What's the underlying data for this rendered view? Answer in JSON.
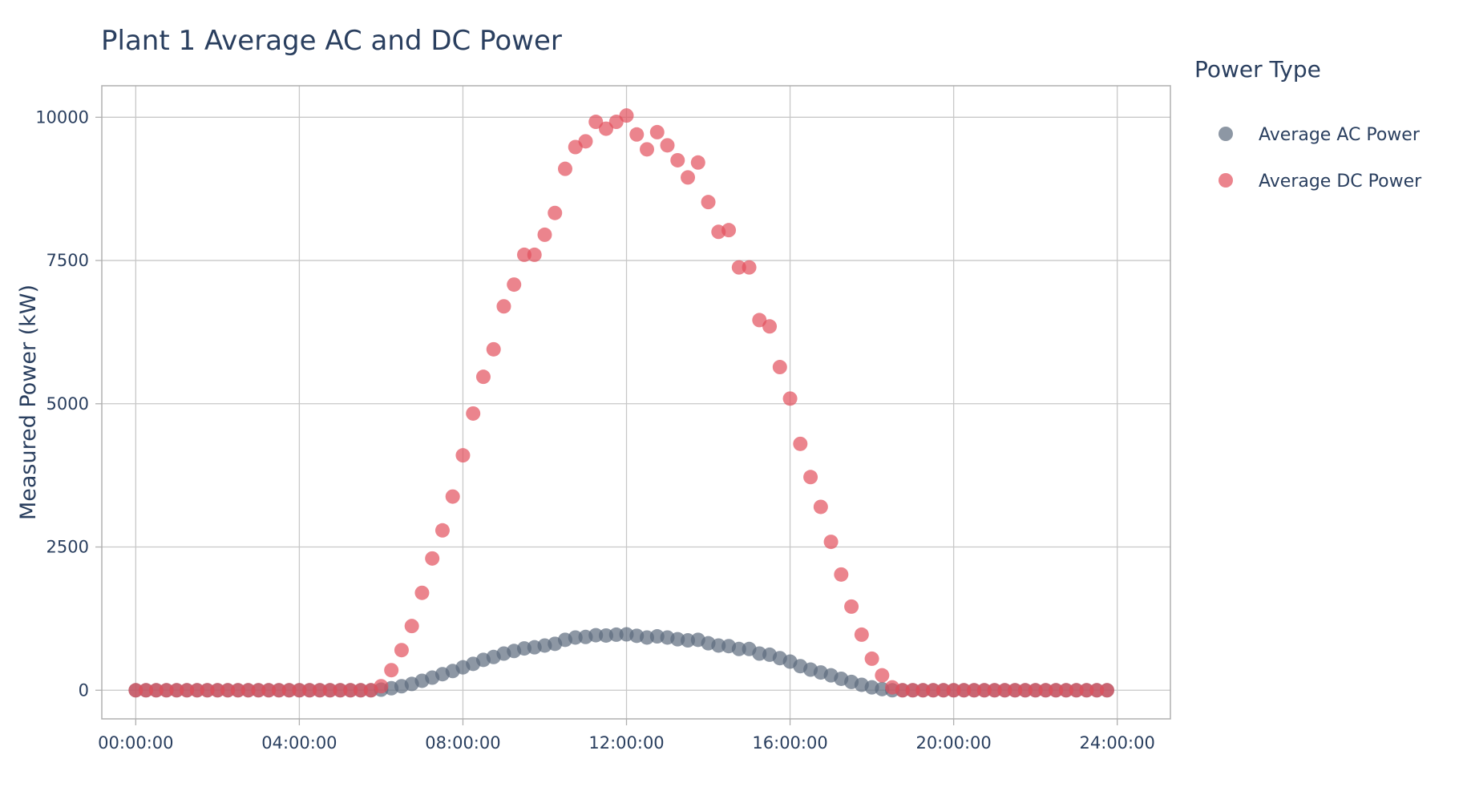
{
  "chart_data": {
    "type": "scatter",
    "title": "Plant 1 Average AC and DC Power",
    "xlabel": "",
    "ylabel": "Measured Power (kW)",
    "x_unit": "hours",
    "xlim": [
      -0.83,
      25.3
    ],
    "ylim": [
      -500,
      10550
    ],
    "x_ticks": [
      0,
      4,
      8,
      12,
      16,
      20,
      24
    ],
    "x_tick_labels": [
      "00:00:00",
      "04:00:00",
      "08:00:00",
      "12:00:00",
      "16:00:00",
      "20:00:00",
      "24:00:00"
    ],
    "y_ticks": [
      0,
      2500,
      5000,
      7500,
      10000
    ],
    "y_tick_labels": [
      "0",
      "2500",
      "5000",
      "7500",
      "10000"
    ],
    "grid": true,
    "legend": {
      "title": "Power Type",
      "placement": "right"
    },
    "x": [
      "00:00:00",
      "00:15:00",
      "00:30:00",
      "00:45:00",
      "01:00:00",
      "01:15:00",
      "01:30:00",
      "01:45:00",
      "02:00:00",
      "02:15:00",
      "02:30:00",
      "02:45:00",
      "03:00:00",
      "03:15:00",
      "03:30:00",
      "03:45:00",
      "04:00:00",
      "04:15:00",
      "04:30:00",
      "04:45:00",
      "05:00:00",
      "05:15:00",
      "05:30:00",
      "05:45:00",
      "06:00:00",
      "06:15:00",
      "06:30:00",
      "06:45:00",
      "07:00:00",
      "07:15:00",
      "07:30:00",
      "07:45:00",
      "08:00:00",
      "08:15:00",
      "08:30:00",
      "08:45:00",
      "09:00:00",
      "09:15:00",
      "09:30:00",
      "09:45:00",
      "10:00:00",
      "10:15:00",
      "10:30:00",
      "10:45:00",
      "11:00:00",
      "11:15:00",
      "11:30:00",
      "11:45:00",
      "12:00:00",
      "12:15:00",
      "12:30:00",
      "12:45:00",
      "13:00:00",
      "13:15:00",
      "13:30:00",
      "13:45:00",
      "14:00:00",
      "14:15:00",
      "14:30:00",
      "14:45:00",
      "15:00:00",
      "15:15:00",
      "15:30:00",
      "15:45:00",
      "16:00:00",
      "16:15:00",
      "16:30:00",
      "16:45:00",
      "17:00:00",
      "17:15:00",
      "17:30:00",
      "17:45:00",
      "18:00:00",
      "18:15:00",
      "18:30:00",
      "18:45:00",
      "19:00:00",
      "19:15:00",
      "19:30:00",
      "19:45:00",
      "20:00:00",
      "20:15:00",
      "20:30:00",
      "20:45:00",
      "21:00:00",
      "21:15:00",
      "21:30:00",
      "21:45:00",
      "22:00:00",
      "22:15:00",
      "22:30:00",
      "22:45:00",
      "23:00:00",
      "23:15:00",
      "23:30:00",
      "23:45:00"
    ],
    "series": [
      {
        "name": "Average AC Power",
        "color": "#5d6b7d",
        "values": [
          0,
          0,
          0,
          0,
          0,
          0,
          0,
          0,
          0,
          0,
          0,
          0,
          0,
          0,
          0,
          0,
          0,
          0,
          0,
          0,
          0,
          0,
          0,
          0,
          10,
          35,
          70,
          110,
          165,
          220,
          280,
          335,
          400,
          460,
          530,
          580,
          640,
          685,
          730,
          750,
          780,
          810,
          880,
          920,
          930,
          960,
          955,
          970,
          975,
          950,
          920,
          940,
          920,
          890,
          870,
          880,
          820,
          780,
          770,
          720,
          720,
          640,
          620,
          560,
          500,
          420,
          360,
          310,
          260,
          200,
          145,
          95,
          50,
          20,
          0,
          0,
          0,
          0,
          0,
          0,
          0,
          0,
          0,
          0,
          0,
          0,
          0,
          0,
          0,
          0,
          0,
          0,
          0,
          0,
          0,
          0
        ]
      },
      {
        "name": "Average DC Power",
        "color": "#e3505c",
        "values": [
          0,
          0,
          0,
          0,
          0,
          0,
          0,
          0,
          0,
          0,
          0,
          0,
          0,
          0,
          0,
          0,
          0,
          0,
          0,
          0,
          0,
          0,
          0,
          0,
          70,
          350,
          700,
          1120,
          1700,
          2300,
          2790,
          3380,
          4100,
          4830,
          5470,
          5950,
          6700,
          7080,
          7600,
          7600,
          7950,
          8330,
          9100,
          9480,
          9580,
          9920,
          9800,
          9920,
          10030,
          9700,
          9440,
          9740,
          9510,
          9250,
          8950,
          9210,
          8520,
          8000,
          8030,
          7380,
          7380,
          6460,
          6350,
          5640,
          5090,
          4300,
          3720,
          3200,
          2590,
          2020,
          1460,
          970,
          550,
          260,
          50,
          0,
          0,
          0,
          0,
          0,
          0,
          0,
          0,
          0,
          0,
          0,
          0,
          0,
          0,
          0,
          0,
          0,
          0,
          0,
          0,
          0
        ]
      }
    ]
  }
}
